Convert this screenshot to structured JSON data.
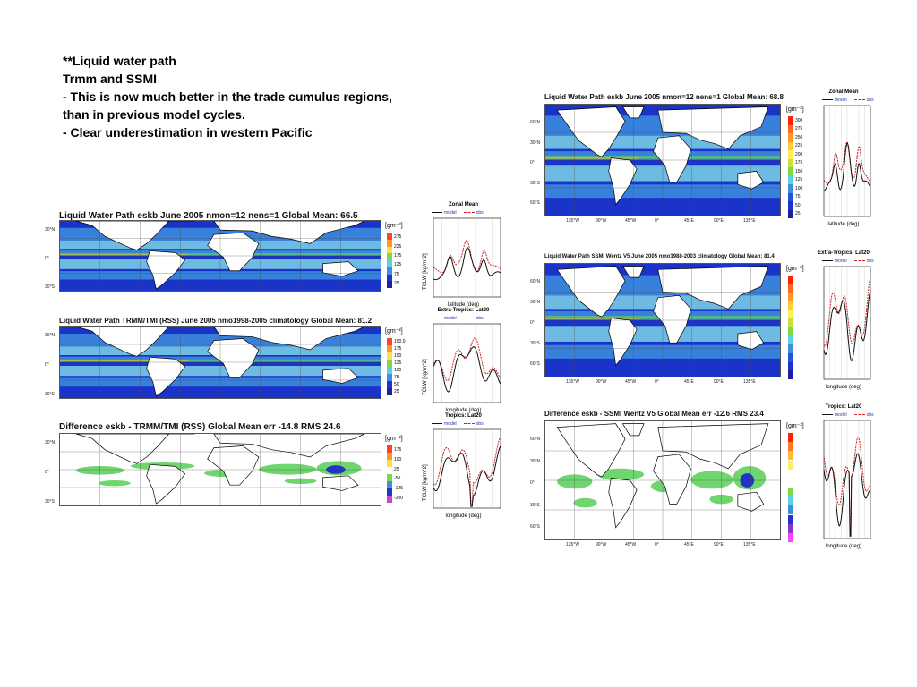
{
  "notes": [
    "**Liquid water path",
    "Trmm and SSMI",
    "- This is now much better in the trade cumulus regions,",
    "than in previous model cycles.",
    "- Clear underestimation in western Pacific"
  ],
  "colors": {
    "model": "#111111",
    "obs": "#cc2222",
    "ocean_dark": "#1a33c8",
    "ocean_mid": "#3d8fe0",
    "ocean_light": "#7dd4e6",
    "green": "#5fd05f",
    "land": "#ffffff"
  },
  "left": {
    "panels": [
      {
        "title": "Liquid Water Path  eskb  June 2005 nmon=12 nens=1  Global Mean: 66.5",
        "lats": [
          "30°N",
          "0°",
          "30°S"
        ],
        "colorbar": {
          "unit": "[gm⁻²]",
          "labels": [
            "275",
            "225",
            "175",
            "125",
            "75",
            "25"
          ]
        },
        "zonal": {
          "title": "Zonal Mean",
          "legend": [
            "model",
            "obs"
          ],
          "xlabel": "latitude (deg)",
          "ylabel": "TCLW [kg/m^2]"
        }
      },
      {
        "title": "Liquid Water Path  TRMM/TMI (RSS)   June 2005 nmo1998-2005 climatology  Global Mean:  81.2",
        "lats": [
          "30°N",
          "0°",
          "30°S"
        ],
        "colorbar": {
          "unit": "[gm⁻²]",
          "labels": [
            "150.0",
            "175",
            "150",
            "125",
            "100",
            "75",
            "50",
            "25"
          ]
        },
        "zonal": {
          "title": "Extra-Tropics: Lat20",
          "legend": [
            "model",
            "obs"
          ],
          "xlabel": "longitude (deg)",
          "ylabel": "TCLW [kg/m^2]"
        }
      },
      {
        "title": "Difference  eskb - TRMM/TMI (RSS)    Global Mean err -14.8  RMS 24.6",
        "lats": [
          "30°N",
          "0°",
          "30°S"
        ],
        "colorbar": {
          "unit": "[gm⁻²]",
          "labels": [
            "175",
            "100",
            "25",
            "-50",
            "-125",
            "-200"
          ]
        },
        "zonal": {
          "title": "Tropics: Lat20",
          "legend": [
            "model",
            "obs"
          ],
          "xlabel": "longitude (deg)",
          "ylabel": "TCLW [kg/m^2]"
        }
      }
    ]
  },
  "right": {
    "panels": [
      {
        "title": "Liquid Water Path  eskb  June 2005 nmon=12 nens=1  Global Mean: 68.8",
        "lats": [
          "60°N",
          "30°N",
          "0°",
          "30°S",
          "60°S"
        ],
        "lons": [
          "135°W",
          "90°W",
          "45°W",
          "0°",
          "45°E",
          "90°E",
          "135°E"
        ],
        "colorbar": {
          "unit": "[gm⁻²]",
          "labels": [
            "300",
            "275",
            "250",
            "225",
            "200",
            "175",
            "150",
            "125",
            "100",
            "75",
            "50",
            "25"
          ]
        },
        "zonal": {
          "title": "Zonal Mean",
          "legend": [
            "model",
            "obs"
          ],
          "xlabel": "latitude (deg)"
        }
      },
      {
        "title": "Liquid Water Path  SSMI Wentz V5  June 2005 nmo1988-2003 climatology  Global Mean:  81.4",
        "lats": [
          "60°N",
          "30°N",
          "0°",
          "30°S",
          "60°S"
        ],
        "lons": [
          "135°W",
          "90°W",
          "45°W",
          "0°",
          "45°E",
          "90°E",
          "135°E"
        ],
        "colorbar": {
          "unit": "[gm⁻²]",
          "labels": []
        },
        "zonal": {
          "title": "Extra-Tropics: Lat20",
          "legend": [
            "model",
            "obs"
          ],
          "xlabel": "longitude (deg)"
        }
      },
      {
        "title": "Difference  eskb - SSMI Wentz V5  Global Mean err -12.6 RMS 23.4",
        "lats": [
          "60°N",
          "30°N",
          "0°",
          "30°S",
          "60°S"
        ],
        "lons": [
          "135°W",
          "90°W",
          "45°W",
          "0°",
          "45°E",
          "90°E",
          "135°E"
        ],
        "colorbar": {
          "unit": "[gm⁻²]",
          "labels": []
        },
        "zonal": {
          "title": "Tropics: Lat20",
          "legend": [
            "model",
            "obs"
          ],
          "xlabel": "longitude (deg)"
        }
      }
    ]
  }
}
